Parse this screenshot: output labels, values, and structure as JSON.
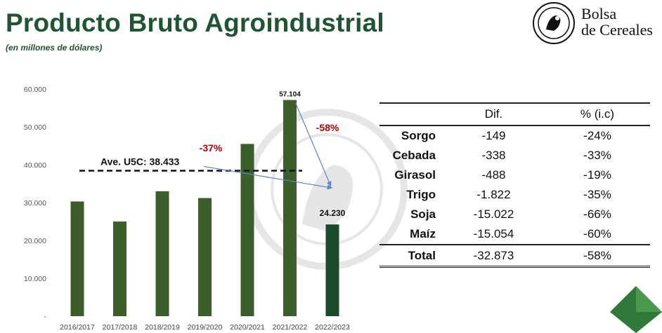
{
  "header": {
    "title": "Producto Bruto Agroindustrial",
    "subtitle": "(en millones de dólares)"
  },
  "logo": {
    "line1": "Bolsa",
    "line2": "de Cereales"
  },
  "colors": {
    "title_green": "#1e5631",
    "bar_green": "#3b5e2b",
    "bar_last": "#1a4a2a",
    "highlight_red": "#c00000",
    "arrow_blue": "#5b86c5"
  },
  "chart_data": {
    "type": "bar",
    "categories": [
      "2016/2017",
      "2017/2018",
      "2018/2019",
      "2019/2020",
      "2020/2021",
      "2021/2022",
      "2022/2023"
    ],
    "values": [
      30300,
      25000,
      33000,
      31200,
      45500,
      57104,
      24230
    ],
    "data_labels": [
      "",
      "",
      "",
      "",
      "",
      "57.104",
      "24.230"
    ],
    "ylim": [
      0,
      60000
    ],
    "yticks": [
      0,
      10000,
      20000,
      30000,
      40000,
      50000,
      60000
    ],
    "ytick_labels": [
      "-",
      "10.000",
      "20.000",
      "30.000",
      "40.000",
      "50.000",
      "60.000"
    ],
    "average": {
      "value": 38433,
      "label": "Ave. U5C: 38.433"
    },
    "annotations": [
      {
        "text": "-37%",
        "color": "#c00000"
      },
      {
        "text": "-58%",
        "color": "#c00000"
      }
    ],
    "grid": false
  },
  "table": {
    "headers": [
      "",
      "Dif.",
      "% (i.c)"
    ],
    "rows": [
      {
        "label": "Sorgo",
        "dif": "-149",
        "pct": "-24%"
      },
      {
        "label": "Cebada",
        "dif": "-338",
        "pct": "-33%"
      },
      {
        "label": "Girasol",
        "dif": "-488",
        "pct": "-19%"
      },
      {
        "label": "Trigo",
        "dif": "-1.822",
        "pct": "-35%"
      },
      {
        "label": "Soja",
        "dif": "-15.022",
        "pct": "-66%"
      },
      {
        "label": "Maíz",
        "dif": "-15.054",
        "pct": "-60%"
      }
    ],
    "total": {
      "label": "Total",
      "dif": "-32.873",
      "pct": "-58%"
    }
  }
}
